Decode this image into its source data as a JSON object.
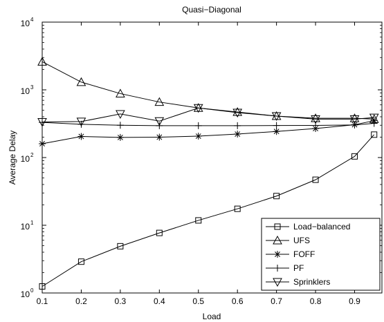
{
  "chart_data": {
    "type": "line",
    "title": "Quasi−Diagonal",
    "xlabel": "Load",
    "ylabel": "Average Delay",
    "x": [
      0.1,
      0.2,
      0.3,
      0.4,
      0.5,
      0.6,
      0.7,
      0.8,
      0.9,
      0.95
    ],
    "xlim": [
      0.1,
      0.97
    ],
    "ylim": [
      1,
      10000
    ],
    "y_scale": "log",
    "x_ticks": [
      "0.1",
      "0.2",
      "0.3",
      "0.4",
      "0.5",
      "0.6",
      "0.7",
      "0.8",
      "0.9"
    ],
    "x_tick_values": [
      0.1,
      0.2,
      0.3,
      0.4,
      0.5,
      0.6,
      0.7,
      0.8,
      0.9
    ],
    "y_ticks": [
      {
        "base": "10",
        "exp": "0",
        "value": 1
      },
      {
        "base": "10",
        "exp": "1",
        "value": 10
      },
      {
        "base": "10",
        "exp": "2",
        "value": 100
      },
      {
        "base": "10",
        "exp": "3",
        "value": 1000
      },
      {
        "base": "10",
        "exp": "4",
        "value": 10000
      }
    ],
    "grid": false,
    "legend_position": "bottom-right",
    "series": [
      {
        "name": "Load−balanced",
        "marker": "square",
        "values": [
          1.25,
          2.9,
          4.9,
          7.7,
          11.8,
          17.5,
          27,
          47,
          104,
          218
        ]
      },
      {
        "name": "UFS",
        "marker": "triangle-up",
        "values": [
          2600,
          1300,
          880,
          660,
          540,
          470,
          410,
          380,
          380,
          370
        ]
      },
      {
        "name": "FOFF",
        "marker": "star",
        "values": [
          160,
          205,
          198,
          200,
          207,
          222,
          243,
          268,
          305,
          350
        ]
      },
      {
        "name": "PF",
        "marker": "plus",
        "values": [
          330,
          310,
          300,
          296,
          296,
          296,
          297,
          298,
          303,
          320
        ]
      },
      {
        "name": "Sprinklers",
        "marker": "triangle-down",
        "values": [
          335,
          340,
          440,
          345,
          540,
          460,
          410,
          370,
          370,
          390
        ]
      }
    ]
  }
}
